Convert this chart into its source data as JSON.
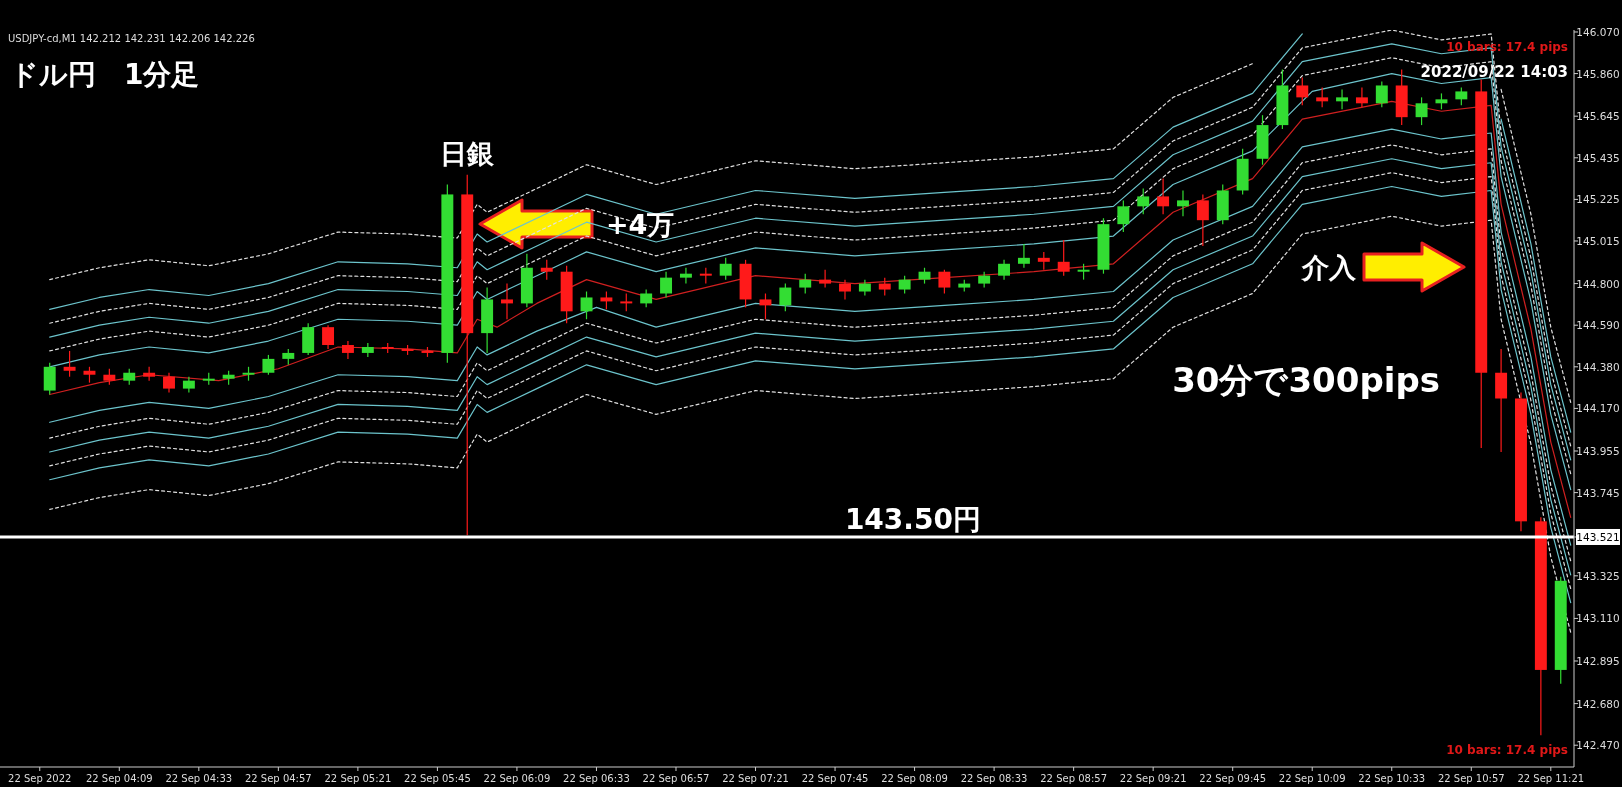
{
  "chart_data": {
    "type": "candlestick",
    "title": "ドル円　1分足",
    "xlim": [
      "2022-09-22T03:33",
      "2022-09-22T11:28"
    ],
    "ylim": [
      142.36,
      146.08
    ],
    "xticks": [
      {
        "value": "2022-09-22T03:45",
        "label": "22 Sep 2022"
      },
      {
        "value": "2022-09-22T04:09",
        "label": "22 Sep 04:09"
      },
      {
        "value": "2022-09-22T04:33",
        "label": "22 Sep 04:33"
      },
      {
        "value": "2022-09-22T04:57",
        "label": "22 Sep 04:57"
      },
      {
        "value": "2022-09-22T05:21",
        "label": "22 Sep 05:21"
      },
      {
        "value": "2022-09-22T05:45",
        "label": "22 Sep 05:45"
      },
      {
        "value": "2022-09-22T06:09",
        "label": "22 Sep 06:09"
      },
      {
        "value": "2022-09-22T06:33",
        "label": "22 Sep 06:33"
      },
      {
        "value": "2022-09-22T06:57",
        "label": "22 Sep 06:57"
      },
      {
        "value": "2022-09-22T07:21",
        "label": "22 Sep 07:21"
      },
      {
        "value": "2022-09-22T07:45",
        "label": "22 Sep 07:45"
      },
      {
        "value": "2022-09-22T08:09",
        "label": "22 Sep 08:09"
      },
      {
        "value": "2022-09-22T08:33",
        "label": "22 Sep 08:33"
      },
      {
        "value": "2022-09-22T08:57",
        "label": "22 Sep 08:57"
      },
      {
        "value": "2022-09-22T09:21",
        "label": "22 Sep 09:21"
      },
      {
        "value": "2022-09-22T09:45",
        "label": "22 Sep 09:45"
      },
      {
        "value": "2022-09-22T10:09",
        "label": "22 Sep 10:09"
      },
      {
        "value": "2022-09-22T10:33",
        "label": "22 Sep 10:33"
      },
      {
        "value": "2022-09-22T10:57",
        "label": "22 Sep 10:57"
      },
      {
        "value": "2022-09-22T11:21",
        "label": "22 Sep 11:21"
      }
    ],
    "yticks": [
      {
        "value": 146.07,
        "label": "146.070"
      },
      {
        "value": 145.86,
        "label": "145.860"
      },
      145.645,
      145.435,
      145.225,
      145.015,
      {
        "value": 144.8,
        "label": "144.800"
      },
      {
        "value": 144.59,
        "label": "144.590"
      },
      {
        "value": 144.38,
        "label": "144.380"
      },
      {
        "value": 144.17,
        "label": "144.170"
      },
      143.955,
      143.745,
      143.521,
      143.325,
      {
        "value": 143.11,
        "label": "143.110"
      },
      142.895,
      {
        "value": 142.68,
        "label": "142.680"
      },
      {
        "value": 142.47,
        "label": "142.470"
      }
    ],
    "colors": [
      "#33dd33",
      "#ff1a1a",
      "#ff1a1a",
      "#ff1a1a",
      "#33dd33",
      "#ff1a1a",
      "#ff1a1a",
      "#33dd33",
      "#33dd33",
      "#33dd33",
      "#33dd33",
      "#33dd33",
      "#33dd33",
      "#33dd33",
      "#ff1a1a",
      "#ff1a1a",
      "#33dd33",
      "#ff1a1a",
      "#ff1a1a",
      "#ff1a1a",
      "#33dd33",
      "#ff1a1a",
      "#33dd33",
      "#ff1a1a",
      "#33dd33",
      "#ff1a1a",
      "#ff1a1a",
      "#33dd33",
      "#ff1a1a",
      "#ff1a1a",
      "#33dd33",
      "#33dd33",
      "#33dd33",
      "#ff1a1a",
      "#33dd33",
      "#ff1a1a",
      "#ff1a1a",
      "#33dd33",
      "#33dd33",
      "#ff1a1a",
      "#ff1a1a",
      "#33dd33",
      "#ff1a1a",
      "#33dd33",
      "#33dd33",
      "#ff1a1a",
      "#33dd33",
      "#33dd33",
      "#33dd33",
      "#33dd33",
      "#ff1a1a",
      "#ff1a1a",
      "#33dd33",
      "#33dd33",
      "#33dd33",
      "#33dd33",
      "#ff1a1a",
      "#33dd33",
      "#ff1a1a",
      "#33dd33",
      "#33dd33",
      "#33dd33",
      "#33dd33",
      "#ff1a1a",
      "#ff1a1a",
      "#33dd33",
      "#ff1a1a",
      "#33dd33",
      "#ff1a1a",
      "#33dd33",
      "#33dd33",
      "#33dd33",
      "#ff1a1a",
      "#ff1a1a",
      "#ff1a1a",
      "#ff1a1a",
      "#33dd33"
    ],
    "x": [
      "2022-09-22T03:48",
      "2022-09-22T03:54",
      "2022-09-22T04:00",
      "2022-09-22T04:06",
      "2022-09-22T04:12",
      "2022-09-22T04:18",
      "2022-09-22T04:24",
      "2022-09-22T04:30",
      "2022-09-22T04:36",
      "2022-09-22T04:42",
      "2022-09-22T04:48",
      "2022-09-22T04:54",
      "2022-09-22T05:00",
      "2022-09-22T05:06",
      "2022-09-22T05:12",
      "2022-09-22T05:18",
      "2022-09-22T05:24",
      "2022-09-22T05:30",
      "2022-09-22T05:36",
      "2022-09-22T05:42",
      "2022-09-22T05:48",
      "2022-09-22T05:54",
      "2022-09-22T06:00",
      "2022-09-22T06:06",
      "2022-09-22T06:12",
      "2022-09-22T06:18",
      "2022-09-22T06:24",
      "2022-09-22T06:30",
      "2022-09-22T06:36",
      "2022-09-22T06:42",
      "2022-09-22T06:48",
      "2022-09-22T06:54",
      "2022-09-22T07:00",
      "2022-09-22T07:06",
      "2022-09-22T07:12",
      "2022-09-22T07:18",
      "2022-09-22T07:24",
      "2022-09-22T07:30",
      "2022-09-22T07:36",
      "2022-09-22T07:42",
      "2022-09-22T07:48",
      "2022-09-22T07:54",
      "2022-09-22T08:00",
      "2022-09-22T08:06",
      "2022-09-22T08:12",
      "2022-09-22T08:18",
      "2022-09-22T08:24",
      "2022-09-22T08:30",
      "2022-09-22T08:36",
      "2022-09-22T08:42",
      "2022-09-22T08:48",
      "2022-09-22T08:54",
      "2022-09-22T09:00",
      "2022-09-22T09:06",
      "2022-09-22T09:12",
      "2022-09-22T09:18",
      "2022-09-22T09:24",
      "2022-09-22T09:30",
      "2022-09-22T09:36",
      "2022-09-22T09:42",
      "2022-09-22T09:48",
      "2022-09-22T09:54",
      "2022-09-22T10:00",
      "2022-09-22T10:06",
      "2022-09-22T10:12",
      "2022-09-22T10:18",
      "2022-09-22T10:24",
      "2022-09-22T10:30",
      "2022-09-22T10:36",
      "2022-09-22T10:42",
      "2022-09-22T10:48",
      "2022-09-22T10:54",
      "2022-09-22T11:00",
      "2022-09-22T11:06",
      "2022-09-22T11:12",
      "2022-09-22T11:18",
      "2022-09-22T11:24"
    ],
    "ohlc": [
      [
        144.26,
        144.4,
        144.24,
        144.38
      ],
      [
        144.38,
        144.46,
        144.33,
        144.36
      ],
      [
        144.36,
        144.38,
        144.3,
        144.34
      ],
      [
        144.34,
        144.37,
        144.29,
        144.31
      ],
      [
        144.31,
        144.37,
        144.29,
        144.35
      ],
      [
        144.35,
        144.38,
        144.31,
        144.33
      ],
      [
        144.33,
        144.35,
        144.25,
        144.27
      ],
      [
        144.27,
        144.33,
        144.25,
        144.31
      ],
      [
        144.31,
        144.35,
        144.29,
        144.32
      ],
      [
        144.32,
        144.36,
        144.29,
        144.34
      ],
      [
        144.34,
        144.38,
        144.31,
        144.35
      ],
      [
        144.35,
        144.44,
        144.34,
        144.42
      ],
      [
        144.42,
        144.47,
        144.39,
        144.45
      ],
      [
        144.45,
        144.6,
        144.44,
        144.58
      ],
      [
        144.58,
        144.59,
        144.47,
        144.49
      ],
      [
        144.49,
        144.51,
        144.42,
        144.45
      ],
      [
        144.45,
        144.5,
        144.43,
        144.48
      ],
      [
        144.48,
        144.5,
        144.45,
        144.47
      ],
      [
        144.47,
        144.49,
        144.44,
        144.46
      ],
      [
        144.46,
        144.48,
        144.43,
        144.45
      ],
      [
        144.45,
        145.3,
        144.4,
        145.25
      ],
      [
        145.25,
        145.35,
        143.53,
        144.55
      ],
      [
        144.55,
        144.78,
        144.45,
        144.72
      ],
      [
        144.72,
        144.8,
        144.62,
        144.7
      ],
      [
        144.7,
        144.95,
        144.68,
        144.88
      ],
      [
        144.88,
        144.92,
        144.82,
        144.86
      ],
      [
        144.86,
        144.89,
        144.6,
        144.66
      ],
      [
        144.66,
        144.76,
        144.62,
        144.73
      ],
      [
        144.73,
        144.76,
        144.67,
        144.71
      ],
      [
        144.71,
        144.75,
        144.66,
        144.7
      ],
      [
        144.7,
        144.77,
        144.68,
        144.75
      ],
      [
        144.75,
        144.86,
        144.73,
        144.83
      ],
      [
        144.83,
        144.88,
        144.8,
        144.85
      ],
      [
        144.85,
        144.88,
        144.8,
        144.84
      ],
      [
        144.84,
        144.93,
        144.82,
        144.9
      ],
      [
        144.9,
        144.92,
        144.68,
        144.72
      ],
      [
        144.72,
        144.75,
        144.62,
        144.69
      ],
      [
        144.69,
        144.8,
        144.66,
        144.78
      ],
      [
        144.78,
        144.85,
        144.75,
        144.82
      ],
      [
        144.82,
        144.87,
        144.78,
        144.8
      ],
      [
        144.8,
        144.82,
        144.72,
        144.76
      ],
      [
        144.76,
        144.82,
        144.74,
        144.8
      ],
      [
        144.8,
        144.83,
        144.74,
        144.77
      ],
      [
        144.77,
        144.84,
        144.75,
        144.82
      ],
      [
        144.82,
        144.88,
        144.8,
        144.86
      ],
      [
        144.86,
        144.87,
        144.75,
        144.78
      ],
      [
        144.78,
        144.82,
        144.76,
        144.8
      ],
      [
        144.8,
        144.86,
        144.78,
        144.84
      ],
      [
        144.84,
        144.92,
        144.82,
        144.9
      ],
      [
        144.9,
        145.0,
        144.88,
        144.93
      ],
      [
        144.93,
        144.96,
        144.87,
        144.91
      ],
      [
        144.91,
        145.02,
        144.84,
        144.86
      ],
      [
        144.86,
        144.9,
        144.82,
        144.87
      ],
      [
        144.87,
        145.13,
        144.85,
        145.1
      ],
      [
        145.1,
        145.22,
        145.06,
        145.19
      ],
      [
        145.19,
        145.28,
        145.15,
        145.24
      ],
      [
        145.24,
        145.33,
        145.15,
        145.19
      ],
      [
        145.19,
        145.27,
        145.14,
        145.22
      ],
      [
        145.22,
        145.25,
        144.99,
        145.12
      ],
      [
        145.12,
        145.3,
        145.1,
        145.27
      ],
      [
        145.27,
        145.48,
        145.25,
        145.43
      ],
      [
        145.43,
        145.65,
        145.4,
        145.6
      ],
      [
        145.6,
        145.88,
        145.58,
        145.8
      ],
      [
        145.8,
        145.84,
        145.7,
        145.74
      ],
      [
        145.74,
        145.79,
        145.69,
        145.72
      ],
      [
        145.72,
        145.78,
        145.68,
        145.74
      ],
      [
        145.74,
        145.79,
        145.69,
        145.71
      ],
      [
        145.71,
        145.82,
        145.69,
        145.8
      ],
      [
        145.8,
        145.88,
        145.6,
        145.64
      ],
      [
        145.64,
        145.74,
        145.6,
        145.71
      ],
      [
        145.71,
        145.76,
        145.68,
        145.73
      ],
      [
        145.73,
        145.79,
        145.7,
        145.77
      ],
      [
        145.77,
        145.83,
        143.97,
        144.35
      ],
      [
        144.35,
        144.47,
        143.95,
        144.22
      ],
      [
        144.22,
        144.25,
        143.55,
        143.6
      ],
      [
        143.6,
        143.62,
        142.52,
        142.85
      ],
      [
        142.85,
        143.32,
        142.78,
        143.3
      ]
    ],
    "series": [
      {
        "type": "line",
        "color": "#d02020",
        "line_style": "solid",
        "x": [
          "2022-09-22T03:48",
          "2022-09-22T04:03",
          "2022-09-22T04:18",
          "2022-09-22T04:39",
          "2022-09-22T04:57",
          "2022-09-22T05:15",
          "2022-09-22T05:36",
          "2022-09-22T05:51",
          "2022-09-22T05:57",
          "2022-09-22T06:03",
          "2022-09-22T06:15",
          "2022-09-22T06:30",
          "2022-09-22T06:51",
          "2022-09-22T07:21",
          "2022-09-22T07:51",
          "2022-09-22T08:18",
          "2022-09-22T08:45",
          "2022-09-22T09:09",
          "2022-09-22T09:27",
          "2022-09-22T09:51",
          "2022-09-22T10:06",
          "2022-09-22T10:33",
          "2022-09-22T10:48",
          "2022-09-22T11:03",
          "2022-09-22T11:06",
          "2022-09-22T11:15",
          "2022-09-22T11:21",
          "2022-09-22T11:27"
        ],
        "values": [
          144.24,
          144.3,
          144.34,
          144.31,
          144.37,
          144.48,
          144.47,
          144.45,
          144.62,
          144.58,
          144.7,
          144.82,
          144.72,
          144.84,
          144.8,
          144.83,
          144.86,
          144.9,
          145.16,
          145.33,
          145.63,
          145.72,
          145.67,
          145.7,
          145.2,
          144.57,
          144.0,
          143.62
        ]
      },
      {
        "type": "line",
        "color": "#6cc4cc",
        "line_style": "solid",
        "x": [
          "2022-09-22T03:48",
          "2022-09-22T04:03",
          "2022-09-22T04:18",
          "2022-09-22T04:36",
          "2022-09-22T04:54",
          "2022-09-22T05:15",
          "2022-09-22T05:36",
          "2022-09-22T05:51",
          "2022-09-22T05:57",
          "2022-09-22T06:00",
          "2022-09-22T06:15",
          "2022-09-22T06:30",
          "2022-09-22T06:51",
          "2022-09-22T07:21",
          "2022-09-22T07:51",
          "2022-09-22T08:18",
          "2022-09-22T08:45",
          "2022-09-22T09:09",
          "2022-09-22T09:27",
          "2022-09-22T09:51",
          "2022-09-22T10:09",
          "2022-09-22T10:33",
          "2022-09-22T10:48",
          "2022-09-22T11:03",
          "2022-09-22T11:06",
          "2022-09-22T11:15",
          "2022-09-22T11:21",
          "2022-09-22T11:27"
        ],
        "values": [
          144.38,
          144.44,
          144.48,
          144.45,
          144.51,
          144.62,
          144.61,
          144.59,
          144.76,
          144.72,
          144.84,
          144.96,
          144.86,
          144.98,
          144.94,
          144.97,
          145.0,
          145.04,
          145.3,
          145.47,
          145.77,
          145.86,
          145.81,
          145.84,
          145.34,
          144.71,
          144.14,
          143.76
        ]
      },
      {
        "type": "line",
        "color": "#e0e0e0",
        "line_style": "dashed",
        "x": [
          "2022-09-22T03:48",
          "2022-09-22T04:03",
          "2022-09-22T04:18",
          "2022-09-22T04:36",
          "2022-09-22T04:54",
          "2022-09-22T05:15",
          "2022-09-22T05:36",
          "2022-09-22T05:51",
          "2022-09-22T05:57",
          "2022-09-22T06:00",
          "2022-09-22T06:15",
          "2022-09-22T06:30",
          "2022-09-22T06:51",
          "2022-09-22T07:21",
          "2022-09-22T07:51",
          "2022-09-22T08:18",
          "2022-09-22T08:45",
          "2022-09-22T09:09",
          "2022-09-22T09:27",
          "2022-09-22T09:51",
          "2022-09-22T10:06",
          "2022-09-22T10:33",
          "2022-09-22T10:48",
          "2022-09-22T11:03",
          "2022-09-22T11:06",
          "2022-09-22T11:15",
          "2022-09-22T11:21",
          "2022-09-22T11:27"
        ],
        "values": [
          144.46,
          144.52,
          144.56,
          144.53,
          144.59,
          144.7,
          144.69,
          144.67,
          144.84,
          144.8,
          144.92,
          145.04,
          144.94,
          145.06,
          145.02,
          145.05,
          145.08,
          145.12,
          145.38,
          145.55,
          145.85,
          145.94,
          145.89,
          145.92,
          145.42,
          144.79,
          144.22,
          143.84
        ]
      },
      {
        "type": "line",
        "color": "#6cc4cc",
        "line_style": "solid",
        "x": [
          "2022-09-22T03:48",
          "2022-09-22T04:03",
          "2022-09-22T04:18",
          "2022-09-22T04:36",
          "2022-09-22T04:54",
          "2022-09-22T05:15",
          "2022-09-22T05:36",
          "2022-09-22T05:51",
          "2022-09-22T05:57",
          "2022-09-22T06:00",
          "2022-09-22T06:15",
          "2022-09-22T06:30",
          "2022-09-22T06:51",
          "2022-09-22T07:21",
          "2022-09-22T07:51",
          "2022-09-22T08:18",
          "2022-09-22T08:45",
          "2022-09-22T09:09",
          "2022-09-22T09:27",
          "2022-09-22T09:51",
          "2022-09-22T10:06",
          "2022-09-22T10:33",
          "2022-09-22T10:48",
          "2022-09-22T11:03",
          "2022-09-22T11:06",
          "2022-09-22T11:15",
          "2022-09-22T11:21",
          "2022-09-22T11:27"
        ],
        "values": [
          144.53,
          144.59,
          144.63,
          144.6,
          144.66,
          144.77,
          144.76,
          144.74,
          144.91,
          144.87,
          144.99,
          145.11,
          145.01,
          145.13,
          145.09,
          145.12,
          145.15,
          145.19,
          145.45,
          145.62,
          145.92,
          146.01,
          145.96,
          145.99,
          145.49,
          144.86,
          144.29,
          143.91
        ]
      },
      {
        "type": "line",
        "color": "#e0e0e0",
        "line_style": "dashed",
        "x": [
          "2022-09-22T03:48",
          "2022-09-22T04:03",
          "2022-09-22T04:18",
          "2022-09-22T04:36",
          "2022-09-22T04:54",
          "2022-09-22T05:15",
          "2022-09-22T05:36",
          "2022-09-22T05:51",
          "2022-09-22T05:57",
          "2022-09-22T06:00",
          "2022-09-22T06:15",
          "2022-09-22T06:30",
          "2022-09-22T06:51",
          "2022-09-22T07:21",
          "2022-09-22T07:51",
          "2022-09-22T08:18",
          "2022-09-22T08:45",
          "2022-09-22T09:09",
          "2022-09-22T09:27",
          "2022-09-22T09:51",
          "2022-09-22T10:06",
          "2022-09-22T10:33",
          "2022-09-22T10:48",
          "2022-09-22T11:03",
          "2022-09-22T11:06",
          "2022-09-22T11:15",
          "2022-09-22T11:21",
          "2022-09-22T11:27"
        ],
        "values": [
          144.6,
          144.66,
          144.7,
          144.67,
          144.73,
          144.84,
          144.83,
          144.81,
          144.98,
          144.94,
          145.06,
          145.18,
          145.08,
          145.2,
          145.16,
          145.19,
          145.22,
          145.26,
          145.52,
          145.69,
          145.99,
          146.08,
          146.03,
          146.06,
          145.56,
          144.93,
          144.36,
          143.98
        ]
      },
      {
        "type": "line",
        "color": "#6cc4cc",
        "line_style": "solid",
        "x": [
          "2022-09-22T03:48",
          "2022-09-22T04:03",
          "2022-09-22T04:18",
          "2022-09-22T04:36",
          "2022-09-22T04:54",
          "2022-09-22T05:15",
          "2022-09-22T05:36",
          "2022-09-22T05:51",
          "2022-09-22T05:57",
          "2022-09-22T06:00",
          "2022-09-22T06:15",
          "2022-09-22T06:30",
          "2022-09-22T06:51",
          "2022-09-22T07:21",
          "2022-09-22T07:51",
          "2022-09-22T08:18",
          "2022-09-22T08:45",
          "2022-09-22T09:09",
          "2022-09-22T09:27",
          "2022-09-22T09:51",
          "2022-09-22T10:06",
          "2022-09-22T10:33",
          "2022-09-22T10:48",
          "2022-09-22T11:03",
          "2022-09-22T11:06",
          "2022-09-22T11:15",
          "2022-09-22T11:21",
          "2022-09-22T11:27"
        ],
        "values": [
          144.67,
          144.73,
          144.77,
          144.74,
          144.8,
          144.91,
          144.9,
          144.88,
          145.05,
          145.01,
          145.13,
          145.25,
          145.15,
          145.27,
          145.23,
          145.26,
          145.29,
          145.33,
          145.59,
          145.76,
          146.06,
          null,
          null,
          null,
          145.63,
          145.0,
          144.43,
          144.05
        ]
      },
      {
        "type": "line",
        "color": "#e0e0e0",
        "line_style": "dashed",
        "x": [
          "2022-09-22T03:48",
          "2022-09-22T04:03",
          "2022-09-22T04:18",
          "2022-09-22T04:36",
          "2022-09-22T04:54",
          "2022-09-22T05:15",
          "2022-09-22T05:36",
          "2022-09-22T05:51",
          "2022-09-22T05:57",
          "2022-09-22T06:00",
          "2022-09-22T06:15",
          "2022-09-22T06:30",
          "2022-09-22T06:51",
          "2022-09-22T07:21",
          "2022-09-22T07:51",
          "2022-09-22T08:18",
          "2022-09-22T08:45",
          "2022-09-22T09:09",
          "2022-09-22T09:27",
          "2022-09-22T09:51",
          "2022-09-22T10:06",
          "2022-09-22T10:33",
          "2022-09-22T10:48",
          "2022-09-22T11:03",
          "2022-09-22T11:06",
          "2022-09-22T11:15",
          "2022-09-22T11:21",
          "2022-09-22T11:27"
        ],
        "values": [
          144.82,
          144.88,
          144.92,
          144.89,
          144.95,
          145.06,
          145.05,
          145.03,
          145.2,
          145.16,
          145.28,
          145.4,
          145.3,
          145.42,
          145.38,
          145.41,
          145.44,
          145.48,
          145.74,
          145.91,
          null,
          null,
          null,
          null,
          145.78,
          145.15,
          144.58,
          144.2
        ]
      },
      {
        "type": "line",
        "color": "#6cc4cc",
        "line_style": "solid",
        "x": [
          "2022-09-22T03:48",
          "2022-09-22T04:03",
          "2022-09-22T04:18",
          "2022-09-22T04:36",
          "2022-09-22T04:54",
          "2022-09-22T05:15",
          "2022-09-22T05:36",
          "2022-09-22T05:51",
          "2022-09-22T05:57",
          "2022-09-22T06:00",
          "2022-09-22T06:15",
          "2022-09-22T06:33",
          "2022-09-22T06:51",
          "2022-09-22T07:21",
          "2022-09-22T07:51",
          "2022-09-22T08:18",
          "2022-09-22T08:45",
          "2022-09-22T09:09",
          "2022-09-22T09:27",
          "2022-09-22T09:51",
          "2022-09-22T10:06",
          "2022-09-22T10:33",
          "2022-09-22T10:48",
          "2022-09-22T11:03",
          "2022-09-22T11:06",
          "2022-09-22T11:15",
          "2022-09-22T11:21",
          "2022-09-22T11:27"
        ],
        "values": [
          144.1,
          144.16,
          144.2,
          144.17,
          144.23,
          144.34,
          144.33,
          144.31,
          144.48,
          144.44,
          144.56,
          144.68,
          144.58,
          144.7,
          144.66,
          144.69,
          144.72,
          144.76,
          145.02,
          145.19,
          145.49,
          145.58,
          145.53,
          145.56,
          145.06,
          144.43,
          143.86,
          143.48
        ]
      },
      {
        "type": "line",
        "color": "#e0e0e0",
        "line_style": "dashed",
        "x": [
          "2022-09-22T03:48",
          "2022-09-22T04:03",
          "2022-09-22T04:18",
          "2022-09-22T04:36",
          "2022-09-22T04:54",
          "2022-09-22T05:15",
          "2022-09-22T05:36",
          "2022-09-22T05:51",
          "2022-09-22T05:57",
          "2022-09-22T06:00",
          "2022-09-22T06:15",
          "2022-09-22T06:30",
          "2022-09-22T06:51",
          "2022-09-22T07:21",
          "2022-09-22T07:51",
          "2022-09-22T08:18",
          "2022-09-22T08:45",
          "2022-09-22T09:09",
          "2022-09-22T09:27",
          "2022-09-22T09:51",
          "2022-09-22T10:06",
          "2022-09-22T10:33",
          "2022-09-22T10:48",
          "2022-09-22T11:03",
          "2022-09-22T11:06",
          "2022-09-22T11:15",
          "2022-09-22T11:21",
          "2022-09-22T11:27"
        ],
        "values": [
          144.02,
          144.08,
          144.12,
          144.09,
          144.15,
          144.26,
          144.25,
          144.23,
          144.4,
          144.36,
          144.48,
          144.6,
          144.5,
          144.62,
          144.58,
          144.61,
          144.64,
          144.68,
          144.94,
          145.11,
          145.41,
          145.5,
          145.45,
          145.48,
          144.98,
          144.35,
          143.78,
          143.4
        ]
      },
      {
        "type": "line",
        "color": "#6cc4cc",
        "line_style": "solid",
        "x": [
          "2022-09-22T03:48",
          "2022-09-22T04:03",
          "2022-09-22T04:18",
          "2022-09-22T04:36",
          "2022-09-22T04:54",
          "2022-09-22T05:15",
          "2022-09-22T05:36",
          "2022-09-22T05:51",
          "2022-09-22T05:57",
          "2022-09-22T06:00",
          "2022-09-22T06:15",
          "2022-09-22T06:30",
          "2022-09-22T06:51",
          "2022-09-22T07:21",
          "2022-09-22T07:51",
          "2022-09-22T08:18",
          "2022-09-22T08:45",
          "2022-09-22T09:09",
          "2022-09-22T09:27",
          "2022-09-22T09:51",
          "2022-09-22T10:06",
          "2022-09-22T10:33",
          "2022-09-22T10:48",
          "2022-09-22T11:03",
          "2022-09-22T11:06",
          "2022-09-22T11:15",
          "2022-09-22T11:21",
          "2022-09-22T11:27"
        ],
        "values": [
          143.95,
          144.01,
          144.05,
          144.02,
          144.08,
          144.19,
          144.18,
          144.16,
          144.33,
          144.29,
          144.41,
          144.53,
          144.43,
          144.55,
          144.51,
          144.54,
          144.57,
          144.61,
          144.87,
          145.04,
          145.34,
          145.43,
          145.38,
          145.41,
          144.91,
          144.28,
          143.71,
          143.33
        ]
      },
      {
        "type": "line",
        "color": "#e0e0e0",
        "line_style": "dashed",
        "x": [
          "2022-09-22T03:48",
          "2022-09-22T04:03",
          "2022-09-22T04:18",
          "2022-09-22T04:36",
          "2022-09-22T04:54",
          "2022-09-22T05:15",
          "2022-09-22T05:36",
          "2022-09-22T05:51",
          "2022-09-22T05:57",
          "2022-09-22T06:00",
          "2022-09-22T06:15",
          "2022-09-22T06:30",
          "2022-09-22T06:51",
          "2022-09-22T07:21",
          "2022-09-22T07:51",
          "2022-09-22T08:18",
          "2022-09-22T08:45",
          "2022-09-22T09:09",
          "2022-09-22T09:27",
          "2022-09-22T09:51",
          "2022-09-22T10:06",
          "2022-09-22T10:33",
          "2022-09-22T10:48",
          "2022-09-22T11:03",
          "2022-09-22T11:06",
          "2022-09-22T11:15",
          "2022-09-22T11:21",
          "2022-09-22T11:27"
        ],
        "values": [
          143.88,
          143.94,
          143.98,
          143.95,
          144.01,
          144.12,
          144.11,
          144.09,
          144.26,
          144.22,
          144.34,
          144.46,
          144.36,
          144.48,
          144.44,
          144.47,
          144.5,
          144.54,
          144.8,
          144.97,
          145.27,
          145.36,
          145.31,
          145.34,
          144.84,
          144.21,
          143.64,
          143.26
        ]
      },
      {
        "type": "line",
        "color": "#6cc4cc",
        "line_style": "solid",
        "x": [
          "2022-09-22T03:48",
          "2022-09-22T04:03",
          "2022-09-22T04:18",
          "2022-09-22T04:36",
          "2022-09-22T04:54",
          "2022-09-22T05:15",
          "2022-09-22T05:36",
          "2022-09-22T05:51",
          "2022-09-22T05:57",
          "2022-09-22T06:00",
          "2022-09-22T06:15",
          "2022-09-22T06:30",
          "2022-09-22T06:51",
          "2022-09-22T07:21",
          "2022-09-22T07:51",
          "2022-09-22T08:18",
          "2022-09-22T08:45",
          "2022-09-22T09:09",
          "2022-09-22T09:27",
          "2022-09-22T09:51",
          "2022-09-22T10:06",
          "2022-09-22T10:33",
          "2022-09-22T10:48",
          "2022-09-22T11:03",
          "2022-09-22T11:06",
          "2022-09-22T11:15",
          "2022-09-22T11:21",
          "2022-09-22T11:27"
        ],
        "values": [
          143.81,
          143.87,
          143.91,
          143.88,
          143.94,
          144.05,
          144.04,
          144.02,
          144.19,
          144.15,
          144.27,
          144.39,
          144.29,
          144.41,
          144.37,
          144.4,
          144.43,
          144.47,
          144.73,
          144.9,
          145.2,
          145.29,
          145.24,
          145.27,
          144.77,
          144.14,
          143.57,
          143.19
        ]
      },
      {
        "type": "line",
        "color": "#e0e0e0",
        "line_style": "dashed",
        "x": [
          "2022-09-22T03:48",
          "2022-09-22T04:03",
          "2022-09-22T04:18",
          "2022-09-22T04:36",
          "2022-09-22T04:54",
          "2022-09-22T05:15",
          "2022-09-22T05:36",
          "2022-09-22T05:51",
          "2022-09-22T05:57",
          "2022-09-22T06:00",
          "2022-09-22T06:15",
          "2022-09-22T06:30",
          "2022-09-22T06:51",
          "2022-09-22T07:21",
          "2022-09-22T07:51",
          "2022-09-22T08:18",
          "2022-09-22T08:45",
          "2022-09-22T09:09",
          "2022-09-22T09:27",
          "2022-09-22T09:51",
          "2022-09-22T10:06",
          "2022-09-22T10:33",
          "2022-09-22T10:48",
          "2022-09-22T11:03",
          "2022-09-22T11:06",
          "2022-09-22T11:15",
          "2022-09-22T11:21",
          "2022-09-22T11:27"
        ],
        "values": [
          143.66,
          143.72,
          143.76,
          143.73,
          143.79,
          143.9,
          143.89,
          143.87,
          144.04,
          144.0,
          144.12,
          144.24,
          144.14,
          144.26,
          144.22,
          144.25,
          144.28,
          144.32,
          144.58,
          144.75,
          145.05,
          145.14,
          145.09,
          145.12,
          144.62,
          143.99,
          143.42,
          143.04
        ]
      }
    ],
    "ref_lines": [
      {
        "axis": "y",
        "value": 143.521,
        "label": "143.50円",
        "color": "#ffffff"
      }
    ],
    "annotations": [
      "USDJPY-cd,M1  142.212 142.231 142.206 142.226",
      {
        "text": "日銀",
        "x": "2022-09-22T05:54",
        "y": 145.35
      },
      "+4万",
      "介入",
      "30分で300pips",
      "10 bars: 17.4 pips",
      "2022/09/22 14:03",
      "10 bars: 17.4 pips"
    ]
  }
}
